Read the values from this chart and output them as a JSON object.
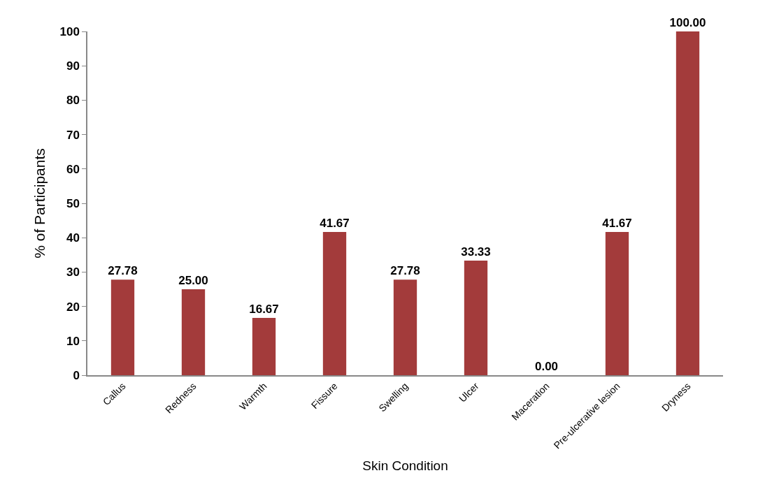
{
  "chart_data": {
    "type": "bar",
    "xlabel": "Skin Condition",
    "ylabel": "% of Participants",
    "categories": [
      "Callus",
      "Redness",
      "Warmth",
      "Fissure",
      "Swelling",
      "Ulcer",
      "Maceration",
      "Pre-ulcerative lesion",
      "Dryness"
    ],
    "values": [
      27.78,
      25.0,
      16.67,
      41.67,
      27.78,
      33.33,
      0.0,
      41.67,
      100.0
    ],
    "value_labels": [
      "27.78",
      "25.00",
      "16.67",
      "41.67",
      "27.78",
      "33.33",
      "0.00",
      "41.67",
      "100.00"
    ],
    "color": "#a33b3b",
    "ylim": [
      0,
      100
    ],
    "yticks": [
      0,
      10,
      20,
      30,
      40,
      50,
      60,
      70,
      80,
      90,
      100
    ],
    "grid": false
  }
}
